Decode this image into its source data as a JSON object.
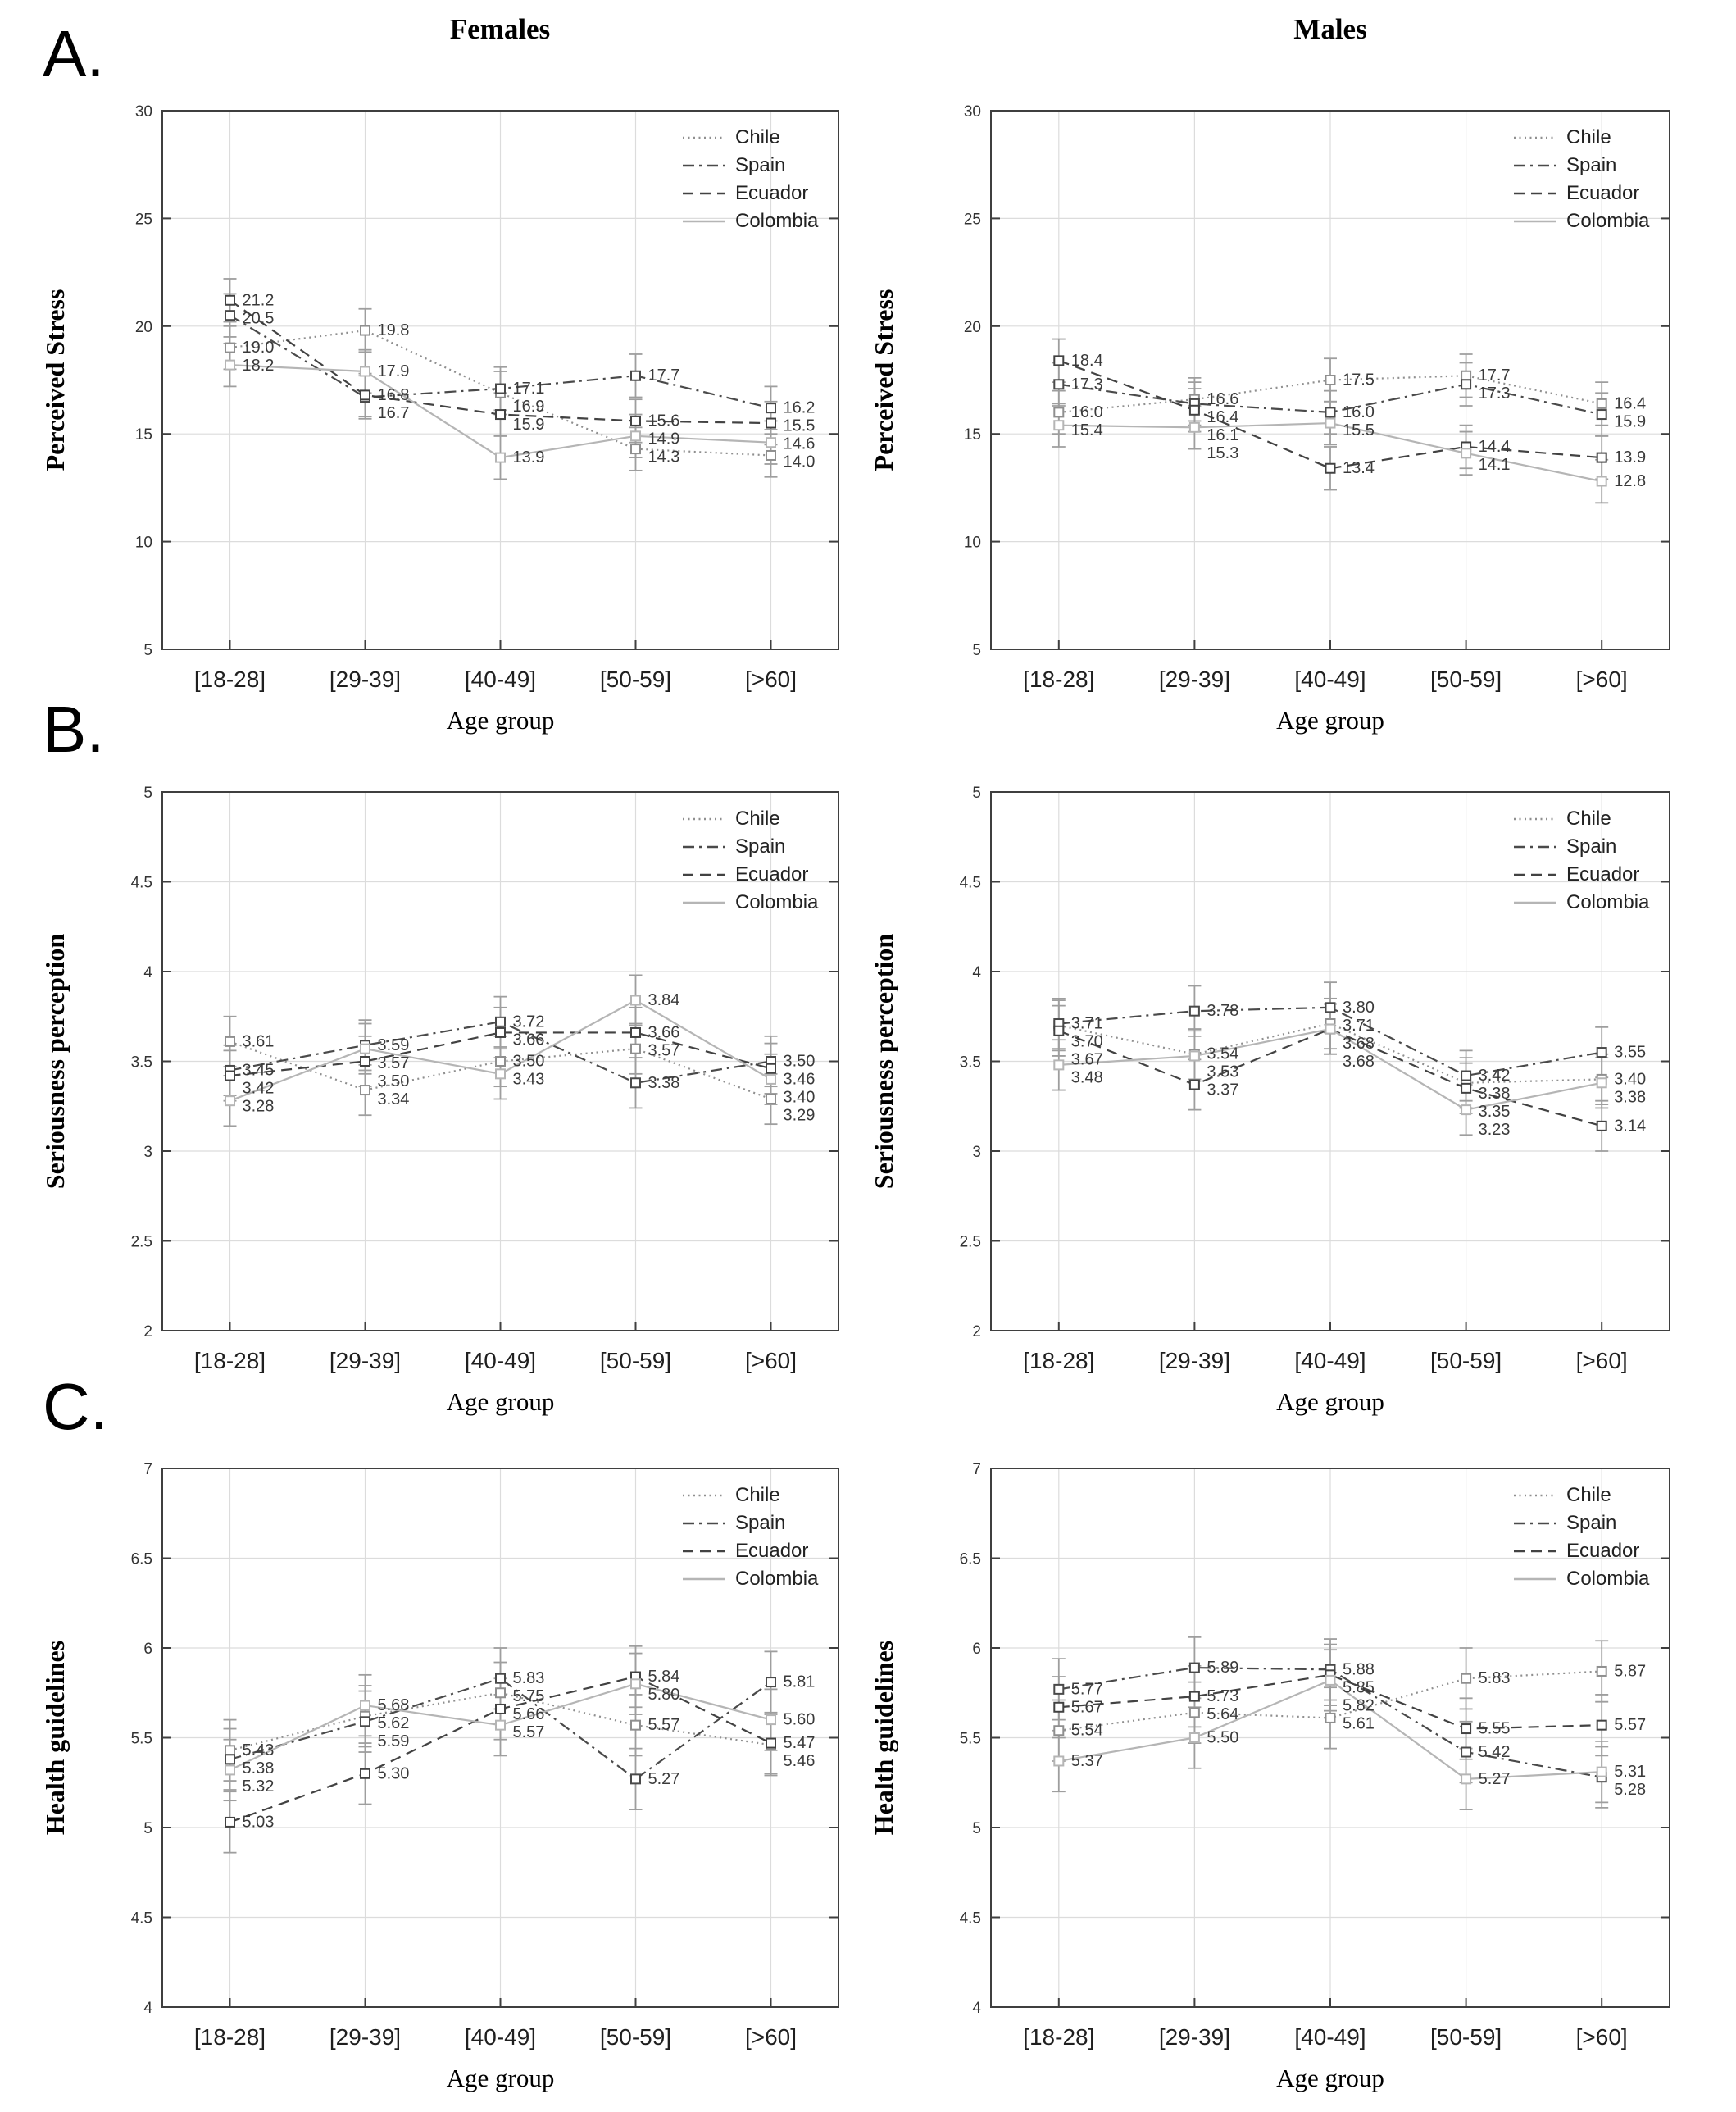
{
  "figure": {
    "row_letters": [
      "A.",
      "B.",
      "C."
    ],
    "column_titles": [
      "Females",
      "Males"
    ],
    "xlabel": "Age group",
    "legend_entries": [
      "Chile",
      "Spain",
      "Ecuador",
      "Colombia"
    ],
    "legend_position": "top-right",
    "colors": {
      "Chile": "#8f8f8f",
      "Spain": "#4a4a4a",
      "Ecuador": "#424242",
      "Colombia": "#b5b5b5",
      "frame": "#3f3f3f",
      "grid": "#dcdcdc",
      "error_bar": "#9e9e9e",
      "value_label": "#3a3a3a",
      "tick_label": "#1f1f1f"
    }
  },
  "chart_data": [
    {
      "id": "a-females",
      "type": "line",
      "row": "A",
      "col": "Females",
      "title": "Females",
      "ylabel": "Perceived Stress",
      "xlabel": "Age group",
      "categories": [
        "[18-28]",
        "[29-39]",
        "[40-49]",
        "[50-59]",
        "[>60]"
      ],
      "ylim": [
        5,
        30
      ],
      "yticks": [
        5,
        10,
        15,
        20,
        25,
        30
      ],
      "grid": true,
      "label_decimals": 1,
      "err": 1.0,
      "series": [
        {
          "name": "Chile",
          "style": "dotted",
          "values": [
            19.0,
            19.8,
            16.9,
            14.3,
            14.0
          ]
        },
        {
          "name": "Spain",
          "style": "dash-dot",
          "values": [
            20.5,
            16.7,
            17.1,
            17.7,
            16.2
          ]
        },
        {
          "name": "Ecuador",
          "style": "dashed",
          "values": [
            21.2,
            16.8,
            15.9,
            15.6,
            15.5
          ]
        },
        {
          "name": "Colombia",
          "style": "solid",
          "values": [
            18.2,
            17.9,
            13.9,
            14.9,
            14.6
          ]
        }
      ]
    },
    {
      "id": "a-males",
      "type": "line",
      "row": "A",
      "col": "Males",
      "title": "Males",
      "ylabel": "Perceived Stress",
      "xlabel": "Age group",
      "categories": [
        "[18-28]",
        "[29-39]",
        "[40-49]",
        "[50-59]",
        "[>60]"
      ],
      "ylim": [
        5,
        30
      ],
      "yticks": [
        5,
        10,
        15,
        20,
        25,
        30
      ],
      "grid": true,
      "label_decimals": 1,
      "err": 1.0,
      "series": [
        {
          "name": "Chile",
          "style": "dotted",
          "values": [
            16.0,
            16.6,
            17.5,
            17.7,
            16.4
          ]
        },
        {
          "name": "Spain",
          "style": "dash-dot",
          "values": [
            17.3,
            16.4,
            16.0,
            17.3,
            15.9
          ]
        },
        {
          "name": "Ecuador",
          "style": "dashed",
          "values": [
            18.4,
            16.1,
            13.4,
            14.4,
            13.9
          ]
        },
        {
          "name": "Colombia",
          "style": "solid",
          "values": [
            15.4,
            15.3,
            15.5,
            14.1,
            12.8
          ]
        }
      ]
    },
    {
      "id": "b-females",
      "type": "line",
      "row": "B",
      "col": "Females",
      "title": "Females",
      "ylabel": "Seriousness perception",
      "xlabel": "Age group",
      "categories": [
        "[18-28]",
        "[29-39]",
        "[40-49]",
        "[50-59]",
        "[>60]"
      ],
      "ylim": [
        2,
        5
      ],
      "yticks": [
        2,
        2.5,
        3,
        3.5,
        4,
        4.5,
        5
      ],
      "grid": true,
      "label_decimals": 2,
      "err": 0.14,
      "series": [
        {
          "name": "Chile",
          "style": "dotted",
          "values": [
            3.61,
            3.34,
            3.5,
            3.57,
            3.29
          ]
        },
        {
          "name": "Spain",
          "style": "dash-dot",
          "values": [
            3.45,
            3.59,
            3.72,
            3.38,
            3.5
          ]
        },
        {
          "name": "Ecuador",
          "style": "dashed",
          "values": [
            3.42,
            3.5,
            3.66,
            3.66,
            3.46
          ]
        },
        {
          "name": "Colombia",
          "style": "solid",
          "values": [
            3.28,
            3.57,
            3.43,
            3.84,
            3.4
          ]
        }
      ]
    },
    {
      "id": "b-males",
      "type": "line",
      "row": "B",
      "col": "Males",
      "title": "Males",
      "ylabel": "Seriousness perception",
      "xlabel": "Age group",
      "categories": [
        "[18-28]",
        "[29-39]",
        "[40-49]",
        "[50-59]",
        "[>60]"
      ],
      "ylim": [
        2,
        5
      ],
      "yticks": [
        2,
        2.5,
        3,
        3.5,
        4,
        4.5,
        5
      ],
      "grid": true,
      "label_decimals": 2,
      "err": 0.14,
      "series": [
        {
          "name": "Chile",
          "style": "dotted",
          "values": [
            3.7,
            3.54,
            3.71,
            3.38,
            3.4
          ]
        },
        {
          "name": "Spain",
          "style": "dash-dot",
          "values": [
            3.71,
            3.78,
            3.8,
            3.42,
            3.55
          ]
        },
        {
          "name": "Ecuador",
          "style": "dashed",
          "values": [
            3.67,
            3.37,
            3.68,
            3.35,
            3.14
          ]
        },
        {
          "name": "Colombia",
          "style": "solid",
          "values": [
            3.48,
            3.53,
            3.68,
            3.23,
            3.38
          ]
        }
      ]
    },
    {
      "id": "c-females",
      "type": "line",
      "row": "C",
      "col": "Females",
      "title": "Females",
      "ylabel": "Health guidelines",
      "xlabel": "Age group",
      "categories": [
        "[18-28]",
        "[29-39]",
        "[40-49]",
        "[50-59]",
        "[>60]"
      ],
      "ylim": [
        4,
        7
      ],
      "yticks": [
        4,
        4.5,
        5,
        5.5,
        6,
        6.5,
        7
      ],
      "grid": true,
      "label_decimals": 2,
      "err": 0.17,
      "series": [
        {
          "name": "Chile",
          "style": "dotted",
          "values": [
            5.43,
            5.62,
            5.75,
            5.57,
            5.46
          ]
        },
        {
          "name": "Spain",
          "style": "dash-dot",
          "values": [
            5.38,
            5.59,
            5.83,
            5.27,
            5.81
          ]
        },
        {
          "name": "Ecuador",
          "style": "dashed",
          "values": [
            5.03,
            5.3,
            5.66,
            5.84,
            5.47
          ]
        },
        {
          "name": "Colombia",
          "style": "solid",
          "values": [
            5.32,
            5.68,
            5.57,
            5.8,
            5.6
          ]
        }
      ]
    },
    {
      "id": "c-males",
      "type": "line",
      "row": "C",
      "col": "Males",
      "title": "Males",
      "ylabel": "Health guidelines",
      "xlabel": "Age group",
      "categories": [
        "[18-28]",
        "[29-39]",
        "[40-49]",
        "[50-59]",
        "[>60]"
      ],
      "ylim": [
        4,
        7
      ],
      "yticks": [
        4,
        4.5,
        5,
        5.5,
        6,
        6.5,
        7
      ],
      "grid": true,
      "label_decimals": 2,
      "err": 0.17,
      "series": [
        {
          "name": "Chile",
          "style": "dotted",
          "values": [
            5.54,
            5.64,
            5.61,
            5.83,
            5.87
          ]
        },
        {
          "name": "Spain",
          "style": "dash-dot",
          "values": [
            5.77,
            5.89,
            5.88,
            5.42,
            5.28
          ]
        },
        {
          "name": "Ecuador",
          "style": "dashed",
          "values": [
            5.67,
            5.73,
            5.85,
            5.55,
            5.57
          ]
        },
        {
          "name": "Colombia",
          "style": "solid",
          "values": [
            5.37,
            5.5,
            5.82,
            5.27,
            5.31
          ]
        }
      ]
    }
  ]
}
